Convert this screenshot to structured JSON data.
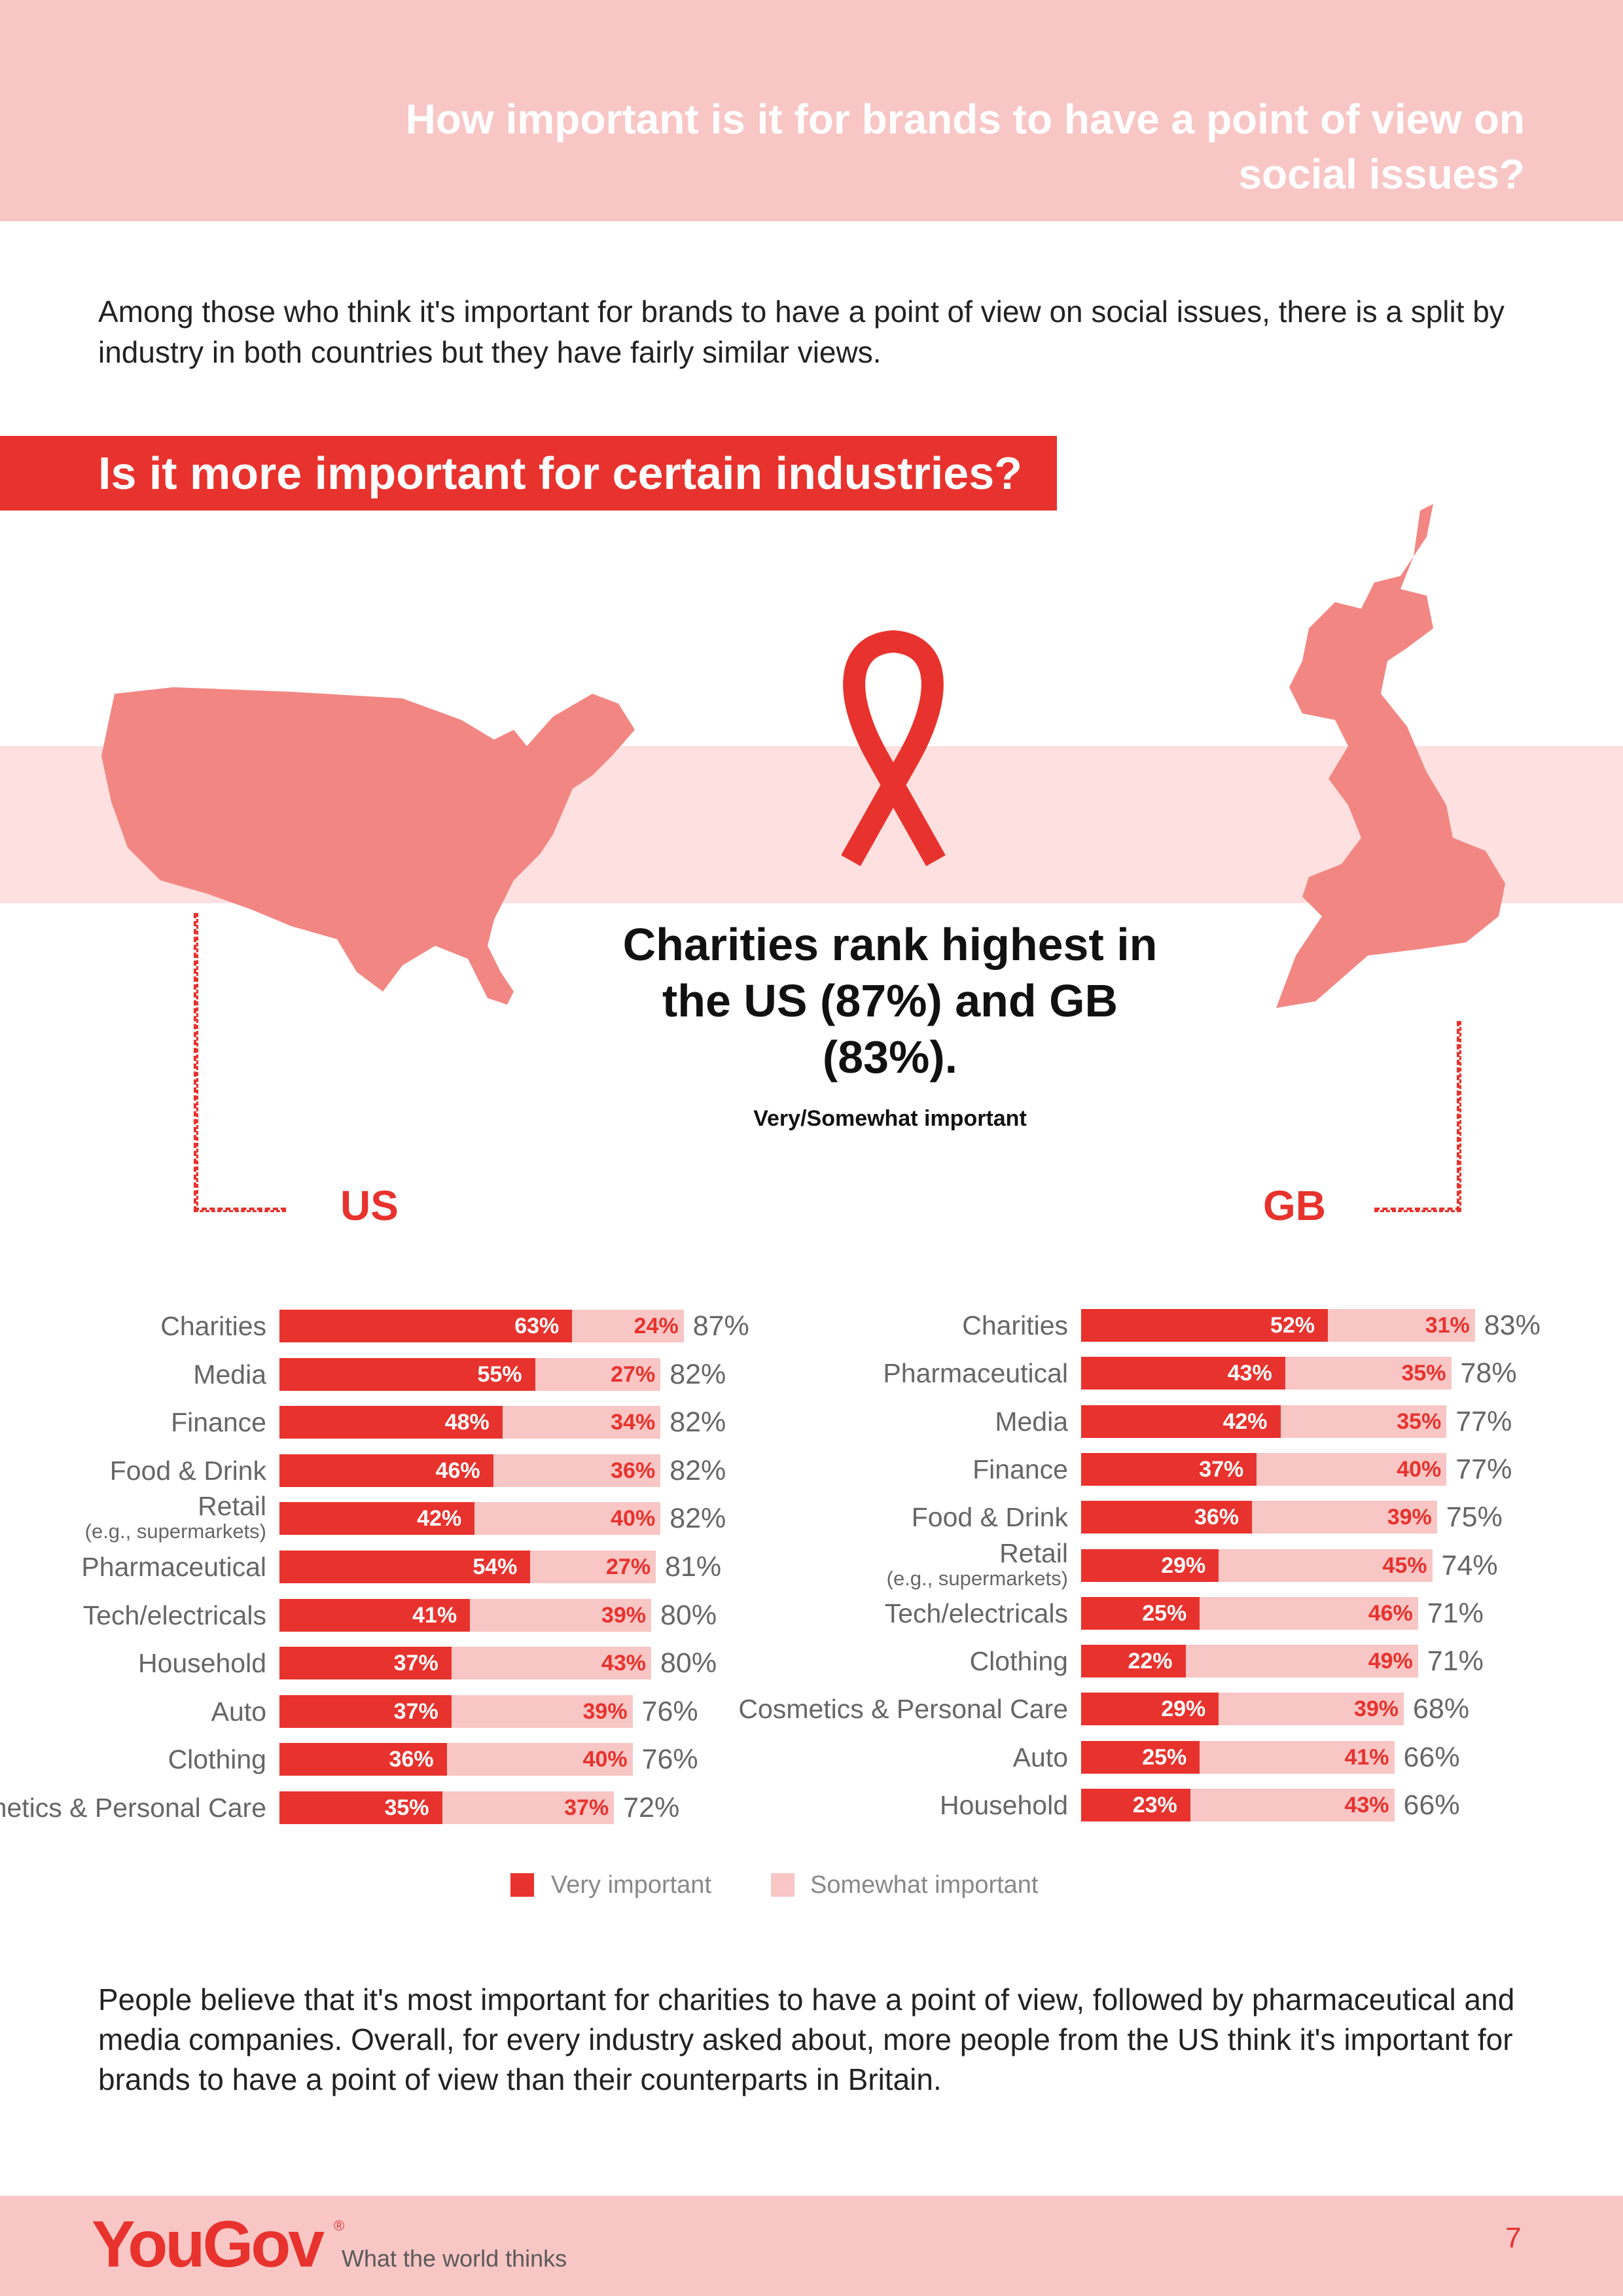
{
  "header": {
    "title": "How important is it for brands to have a point of view on social issues?"
  },
  "intro": {
    "text": "Among those who think it's important for brands to have a point of view on social issues, there is a split by industry in both countries but they have fairly similar views."
  },
  "section": {
    "title": "Is it more important for certain industries?"
  },
  "highlight": {
    "headline": "Charities rank highest in the US (87%) and GB (83%).",
    "subtitle": "Very/Somewhat important"
  },
  "colors": {
    "very": "#e8322d",
    "somewhat": "#f8c6c5",
    "map": "#f28682",
    "band": "#fde0df"
  },
  "chart_data": [
    {
      "type": "bar",
      "stacked": true,
      "orientation": "horizontal",
      "title": "US",
      "categories": [
        "Charities",
        "Media",
        "Finance",
        "Food & Drink",
        "Retail",
        "Pharmaceutical",
        "Tech/electricals",
        "Household",
        "Auto",
        "Clothing",
        "Cosmetics & Personal Care"
      ],
      "category_notes": [
        "",
        "",
        "",
        "",
        "(e.g., supermarkets)",
        "",
        "",
        "",
        "",
        "",
        ""
      ],
      "series": [
        {
          "name": "Very important",
          "values": [
            63,
            55,
            48,
            46,
            42,
            54,
            41,
            37,
            37,
            36,
            35
          ]
        },
        {
          "name": "Somewhat important",
          "values": [
            24,
            27,
            34,
            36,
            40,
            27,
            39,
            43,
            39,
            40,
            37
          ]
        }
      ],
      "totals": [
        87,
        82,
        82,
        82,
        82,
        81,
        80,
        80,
        76,
        76,
        72
      ],
      "legend": "bottom"
    },
    {
      "type": "bar",
      "stacked": true,
      "orientation": "horizontal",
      "title": "GB",
      "categories": [
        "Charities",
        "Pharmaceutical",
        "Media",
        "Finance",
        "Food & Drink",
        "Retail",
        "Tech/electricals",
        "Clothing",
        "Cosmetics & Personal Care",
        "Auto",
        "Household"
      ],
      "category_notes": [
        "",
        "",
        "",
        "",
        "",
        "(e.g., supermarkets)",
        "",
        "",
        "",
        "",
        ""
      ],
      "series": [
        {
          "name": "Very important",
          "values": [
            52,
            43,
            42,
            37,
            36,
            29,
            25,
            22,
            29,
            25,
            23
          ]
        },
        {
          "name": "Somewhat important",
          "values": [
            31,
            35,
            35,
            40,
            39,
            45,
            46,
            49,
            39,
            41,
            43
          ]
        }
      ],
      "totals": [
        83,
        78,
        77,
        77,
        75,
        74,
        71,
        71,
        68,
        66,
        66
      ],
      "legend": "bottom"
    }
  ],
  "legend": {
    "very_label": "Very important",
    "somewhat_label": "Somewhat important"
  },
  "closing": {
    "text": "People believe that it's most important for charities to have a point of view, followed by pharmaceutical and media companies. Overall, for every industry asked about, more people from the US think it's important for brands to have a point of view than their counterparts in Britain."
  },
  "footer": {
    "logo": "YouGov",
    "registered": "®",
    "tagline": "What the world thinks",
    "page_number": "7"
  }
}
